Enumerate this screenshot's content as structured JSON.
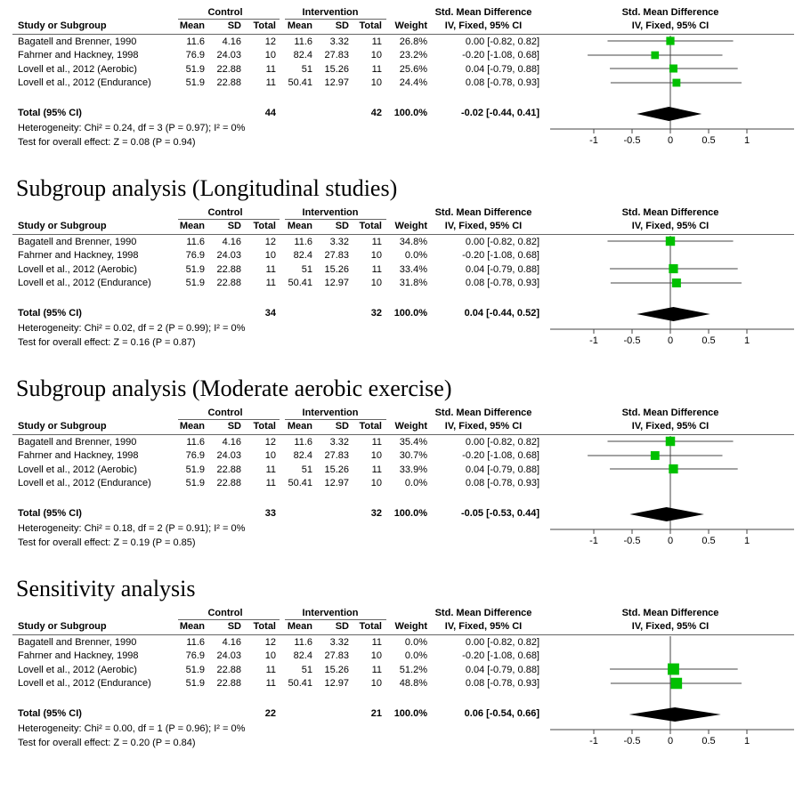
{
  "headers": {
    "study": "Study or Subgroup",
    "control": "Control",
    "intervention": "Intervention",
    "mean": "Mean",
    "sd": "SD",
    "total": "Total",
    "weight": "Weight",
    "smd_title": "Std. Mean Difference",
    "smd_method": "IV, Fixed, 95% CI",
    "plot_title": "Std. Mean Difference",
    "plot_method": "IV, Fixed, 95% CI"
  },
  "chart_data": [
    {
      "type": "forest",
      "title": "",
      "xlim": [
        -1,
        1
      ],
      "ticks": [
        "-1",
        "-0.5",
        "0",
        "0.5",
        "1"
      ],
      "studies": [
        {
          "name": "Bagatell and Brenner, 1990",
          "c_mean": "11.6",
          "c_sd": "4.16",
          "c_total": "12",
          "i_mean": "11.6",
          "i_sd": "3.32",
          "i_total": "11",
          "weight": "26.8%",
          "ci": "0.00 [-0.82, 0.82]",
          "est": 0.0,
          "lo": -0.82,
          "hi": 0.82,
          "w": 26.8
        },
        {
          "name": "Fahrner and Hackney, 1998",
          "c_mean": "76.9",
          "c_sd": "24.03",
          "c_total": "10",
          "i_mean": "82.4",
          "i_sd": "27.83",
          "i_total": "10",
          "weight": "23.2%",
          "ci": "-0.20 [-1.08, 0.68]",
          "est": -0.2,
          "lo": -1.08,
          "hi": 0.68,
          "w": 23.2
        },
        {
          "name": "Lovell et al., 2012 (Aerobic)",
          "c_mean": "51.9",
          "c_sd": "22.88",
          "c_total": "11",
          "i_mean": "51",
          "i_sd": "15.26",
          "i_total": "11",
          "weight": "25.6%",
          "ci": "0.04 [-0.79, 0.88]",
          "est": 0.04,
          "lo": -0.79,
          "hi": 0.88,
          "w": 25.6
        },
        {
          "name": "Lovell et al., 2012 (Endurance)",
          "c_mean": "51.9",
          "c_sd": "22.88",
          "c_total": "11",
          "i_mean": "50.41",
          "i_sd": "12.97",
          "i_total": "10",
          "weight": "24.4%",
          "ci": "0.08 [-0.78, 0.93]",
          "est": 0.08,
          "lo": -0.78,
          "hi": 0.93,
          "w": 24.4
        }
      ],
      "total": {
        "label": "Total (95% CI)",
        "c_total": "44",
        "i_total": "42",
        "weight": "100.0%",
        "ci": "-0.02 [-0.44, 0.41]",
        "est": -0.02,
        "lo": -0.44,
        "hi": 0.41
      },
      "heterogeneity": "Heterogeneity: Chi² = 0.24, df = 3 (P = 0.97); I² = 0%",
      "overall": "Test for overall effect: Z = 0.08 (P = 0.94)"
    },
    {
      "type": "forest",
      "title": "Subgroup analysis (Longitudinal studies)",
      "xlim": [
        -1,
        1
      ],
      "ticks": [
        "-1",
        "-0.5",
        "0",
        "0.5",
        "1"
      ],
      "studies": [
        {
          "name": "Bagatell and Brenner, 1990",
          "c_mean": "11.6",
          "c_sd": "4.16",
          "c_total": "12",
          "i_mean": "11.6",
          "i_sd": "3.32",
          "i_total": "11",
          "weight": "34.8%",
          "ci": "0.00 [-0.82, 0.82]",
          "est": 0.0,
          "lo": -0.82,
          "hi": 0.82,
          "w": 34.8
        },
        {
          "name": "Fahrner and Hackney, 1998",
          "c_mean": "76.9",
          "c_sd": "24.03",
          "c_total": "10",
          "i_mean": "82.4",
          "i_sd": "27.83",
          "i_total": "10",
          "weight": "0.0%",
          "ci": "-0.20 [-1.08, 0.68]",
          "est": -0.2,
          "lo": -1.08,
          "hi": 0.68,
          "w": 0
        },
        {
          "name": "Lovell et al., 2012 (Aerobic)",
          "c_mean": "51.9",
          "c_sd": "22.88",
          "c_total": "11",
          "i_mean": "51",
          "i_sd": "15.26",
          "i_total": "11",
          "weight": "33.4%",
          "ci": "0.04 [-0.79, 0.88]",
          "est": 0.04,
          "lo": -0.79,
          "hi": 0.88,
          "w": 33.4
        },
        {
          "name": "Lovell et al., 2012 (Endurance)",
          "c_mean": "51.9",
          "c_sd": "22.88",
          "c_total": "11",
          "i_mean": "50.41",
          "i_sd": "12.97",
          "i_total": "10",
          "weight": "31.8%",
          "ci": "0.08 [-0.78, 0.93]",
          "est": 0.08,
          "lo": -0.78,
          "hi": 0.93,
          "w": 31.8
        }
      ],
      "total": {
        "label": "Total (95% CI)",
        "c_total": "34",
        "i_total": "32",
        "weight": "100.0%",
        "ci": "0.04 [-0.44, 0.52]",
        "est": 0.04,
        "lo": -0.44,
        "hi": 0.52
      },
      "heterogeneity": "Heterogeneity: Chi² = 0.02, df = 2 (P = 0.99); I² = 0%",
      "overall": "Test for overall effect: Z = 0.16 (P = 0.87)"
    },
    {
      "type": "forest",
      "title": "Subgroup analysis (Moderate aerobic exercise)",
      "xlim": [
        -1,
        1
      ],
      "ticks": [
        "-1",
        "-0.5",
        "0",
        "0.5",
        "1"
      ],
      "studies": [
        {
          "name": "Bagatell and Brenner, 1990",
          "c_mean": "11.6",
          "c_sd": "4.16",
          "c_total": "12",
          "i_mean": "11.6",
          "i_sd": "3.32",
          "i_total": "11",
          "weight": "35.4%",
          "ci": "0.00 [-0.82, 0.82]",
          "est": 0.0,
          "lo": -0.82,
          "hi": 0.82,
          "w": 35.4
        },
        {
          "name": "Fahrner and Hackney, 1998",
          "c_mean": "76.9",
          "c_sd": "24.03",
          "c_total": "10",
          "i_mean": "82.4",
          "i_sd": "27.83",
          "i_total": "10",
          "weight": "30.7%",
          "ci": "-0.20 [-1.08, 0.68]",
          "est": -0.2,
          "lo": -1.08,
          "hi": 0.68,
          "w": 30.7
        },
        {
          "name": "Lovell et al., 2012 (Aerobic)",
          "c_mean": "51.9",
          "c_sd": "22.88",
          "c_total": "11",
          "i_mean": "51",
          "i_sd": "15.26",
          "i_total": "11",
          "weight": "33.9%",
          "ci": "0.04 [-0.79, 0.88]",
          "est": 0.04,
          "lo": -0.79,
          "hi": 0.88,
          "w": 33.9
        },
        {
          "name": "Lovell et al., 2012 (Endurance)",
          "c_mean": "51.9",
          "c_sd": "22.88",
          "c_total": "11",
          "i_mean": "50.41",
          "i_sd": "12.97",
          "i_total": "10",
          "weight": "0.0%",
          "ci": "0.08 [-0.78, 0.93]",
          "est": 0.08,
          "lo": -0.78,
          "hi": 0.93,
          "w": 0
        }
      ],
      "total": {
        "label": "Total (95% CI)",
        "c_total": "33",
        "i_total": "32",
        "weight": "100.0%",
        "ci": "-0.05 [-0.53, 0.44]",
        "est": -0.05,
        "lo": -0.53,
        "hi": 0.44
      },
      "heterogeneity": "Heterogeneity: Chi² = 0.18, df = 2 (P = 0.91); I² = 0%",
      "overall": "Test for overall effect: Z = 0.19 (P = 0.85)"
    },
    {
      "type": "forest",
      "title": "Sensitivity analysis",
      "xlim": [
        -1,
        1
      ],
      "ticks": [
        "-1",
        "-0.5",
        "0",
        "0.5",
        "1"
      ],
      "studies": [
        {
          "name": "Bagatell and Brenner, 1990",
          "c_mean": "11.6",
          "c_sd": "4.16",
          "c_total": "12",
          "i_mean": "11.6",
          "i_sd": "3.32",
          "i_total": "11",
          "weight": "0.0%",
          "ci": "0.00 [-0.82, 0.82]",
          "est": 0.0,
          "lo": -0.82,
          "hi": 0.82,
          "w": 0
        },
        {
          "name": "Fahrner and Hackney, 1998",
          "c_mean": "76.9",
          "c_sd": "24.03",
          "c_total": "10",
          "i_mean": "82.4",
          "i_sd": "27.83",
          "i_total": "10",
          "weight": "0.0%",
          "ci": "-0.20 [-1.08, 0.68]",
          "est": -0.2,
          "lo": -1.08,
          "hi": 0.68,
          "w": 0
        },
        {
          "name": "Lovell et al., 2012 (Aerobic)",
          "c_mean": "51.9",
          "c_sd": "22.88",
          "c_total": "11",
          "i_mean": "51",
          "i_sd": "15.26",
          "i_total": "11",
          "weight": "51.2%",
          "ci": "0.04 [-0.79, 0.88]",
          "est": 0.04,
          "lo": -0.79,
          "hi": 0.88,
          "w": 51.2
        },
        {
          "name": "Lovell et al., 2012 (Endurance)",
          "c_mean": "51.9",
          "c_sd": "22.88",
          "c_total": "11",
          "i_mean": "50.41",
          "i_sd": "12.97",
          "i_total": "10",
          "weight": "48.8%",
          "ci": "0.08 [-0.78, 0.93]",
          "est": 0.08,
          "lo": -0.78,
          "hi": 0.93,
          "w": 48.8
        }
      ],
      "total": {
        "label": "Total (95% CI)",
        "c_total": "22",
        "i_total": "21",
        "weight": "100.0%",
        "ci": "0.06 [-0.54, 0.66]",
        "est": 0.06,
        "lo": -0.54,
        "hi": 0.66
      },
      "heterogeneity": "Heterogeneity: Chi² = 0.00, df = 1 (P = 0.96); I² = 0%",
      "overall": "Test for overall effect: Z = 0.20 (P = 0.84)"
    }
  ],
  "colors": {
    "marker": "#00c000",
    "diamond": "#000000",
    "line": "#444444"
  }
}
